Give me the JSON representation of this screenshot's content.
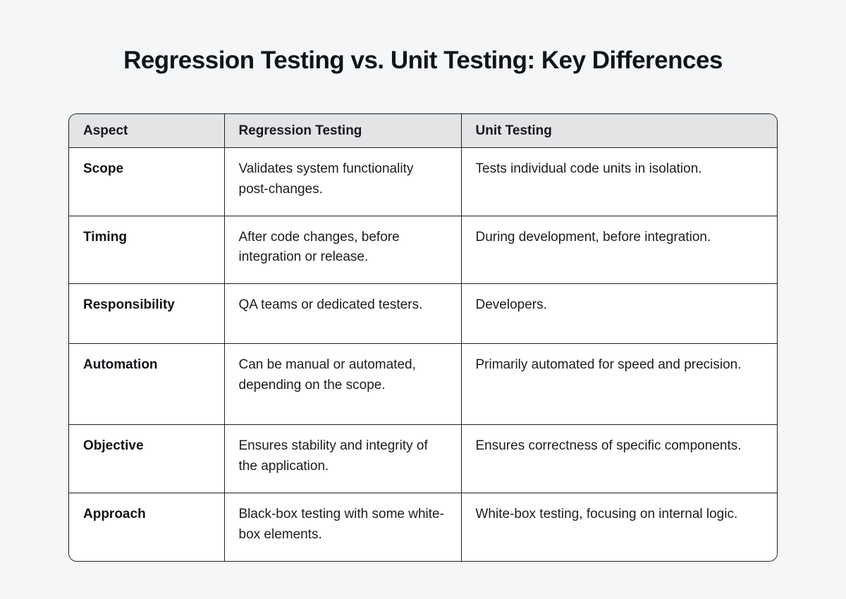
{
  "page": {
    "title": "Regression Testing vs. Unit Testing: Key Differences"
  },
  "colors": {
    "page_background": "#f4f6f7",
    "header_background": "#e2e4e6",
    "body_background": "#ffffff",
    "border": "#1e2124",
    "text": "#17191c"
  },
  "table": {
    "headers": {
      "aspect": "Aspect",
      "regression": "Regression Testing",
      "unit": "Unit Testing"
    },
    "rows": [
      {
        "aspect": "Scope",
        "regression": "Validates system functionality post-changes.",
        "unit": "Tests individual code units in isolation."
      },
      {
        "aspect": "Timing",
        "regression": "After code changes, before integration or release.",
        "unit": "During development, before integration."
      },
      {
        "aspect": "Responsibility",
        "regression": "QA teams or dedicated testers.",
        "unit": "Developers."
      },
      {
        "aspect": "Automation",
        "regression": "Can be manual or automated, depending on the scope.",
        "unit": "Primarily automated for speed and precision."
      },
      {
        "aspect": "Objective",
        "regression": "Ensures stability and integrity of the application.",
        "unit": "Ensures correctness of specific components."
      },
      {
        "aspect": "Approach",
        "regression": "Black-box testing with some white-box elements.",
        "unit": "White-box testing, focusing on internal logic."
      }
    ]
  }
}
